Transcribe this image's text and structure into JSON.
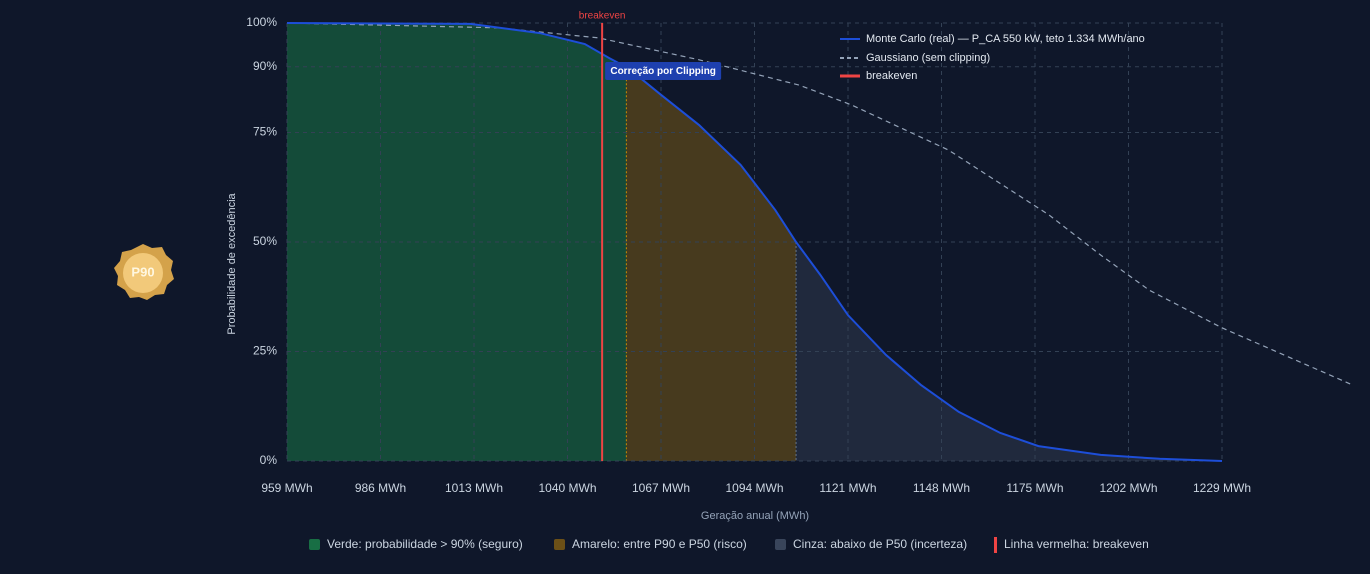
{
  "chart_data": {
    "type": "line",
    "y_label": "Probabilidade de excedência",
    "x_label": "Geração anual (MWh)",
    "xlim": [
      959,
      1229
    ],
    "ylim": [
      0,
      100
    ],
    "xticks": [
      {
        "value": 959,
        "label": "959 MWh"
      },
      {
        "value": 986,
        "label": "986 MWh"
      },
      {
        "value": 1013,
        "label": "1013 MWh"
      },
      {
        "value": 1040,
        "label": "1040 MWh"
      },
      {
        "value": 1067,
        "label": "1067 MWh"
      },
      {
        "value": 1094,
        "label": "1094 MWh"
      },
      {
        "value": 1121,
        "label": "1121 MWh"
      },
      {
        "value": 1148,
        "label": "1148 MWh"
      },
      {
        "value": 1175,
        "label": "1175 MWh"
      },
      {
        "value": 1202,
        "label": "1202 MWh"
      },
      {
        "value": 1229,
        "label": "1229 MWh"
      }
    ],
    "yticks": [
      {
        "value": 0,
        "label": "0%"
      },
      {
        "value": 25,
        "label": "25%"
      },
      {
        "value": 50,
        "label": "50%"
      },
      {
        "value": 75,
        "label": "75%"
      },
      {
        "value": 90,
        "label": "90%"
      },
      {
        "value": 100,
        "label": "100%"
      }
    ],
    "grid": true,
    "legend_corner": "top-right",
    "series": [
      {
        "name": "Monte Carlo (real) — P_CA 550 kW, teto 1.334 MWh/ano",
        "color": "#1d4ed8",
        "style": "solid",
        "x": [
          959,
          1012,
          1032,
          1045,
          1052,
          1057.5,
          1067,
          1078,
          1090,
          1100,
          1106,
          1113,
          1121,
          1132,
          1142,
          1153,
          1165,
          1176,
          1194,
          1211,
          1229
        ],
        "values": [
          100,
          99.8,
          97.7,
          95.2,
          92,
          89.7,
          83.6,
          76.7,
          67.6,
          57.3,
          50,
          42.5,
          33.3,
          24.2,
          17.4,
          11.2,
          6.4,
          3.4,
          1.4,
          0.5,
          0
        ]
      },
      {
        "name": "Gaussiano (sem clipping)",
        "color": "#94a3b8",
        "style": "dashed",
        "x": [
          959,
          1020,
          1049,
          1078,
          1107,
          1122,
          1150,
          1179,
          1194,
          1208,
          1229,
          1266
        ],
        "values": [
          100,
          98.9,
          96.6,
          91.6,
          85.8,
          81.3,
          71,
          56.2,
          47,
          39,
          30.4,
          17.6
        ]
      }
    ],
    "breakeven": {
      "name": "breakeven",
      "value": 1050,
      "color": "#ef4444"
    },
    "annotation": {
      "text": "Correção por Clipping",
      "color": "#1e40af"
    },
    "zones": [
      {
        "label": "Verde: probabilidade > 90% (seguro)",
        "from": 959,
        "to": 1057,
        "color": "#22c55e"
      },
      {
        "label": "Amarelo: entre P90 e P50 (risco)",
        "from": 1057,
        "to": 1106,
        "color": "#ca8a04"
      },
      {
        "label": "Cinza: abaixo de P50 (incerteza)",
        "from": 1106,
        "to": 1229,
        "color": "#64748b"
      }
    ],
    "breakeven_legend": "Linha vermelha: breakeven",
    "badge": "P90"
  }
}
